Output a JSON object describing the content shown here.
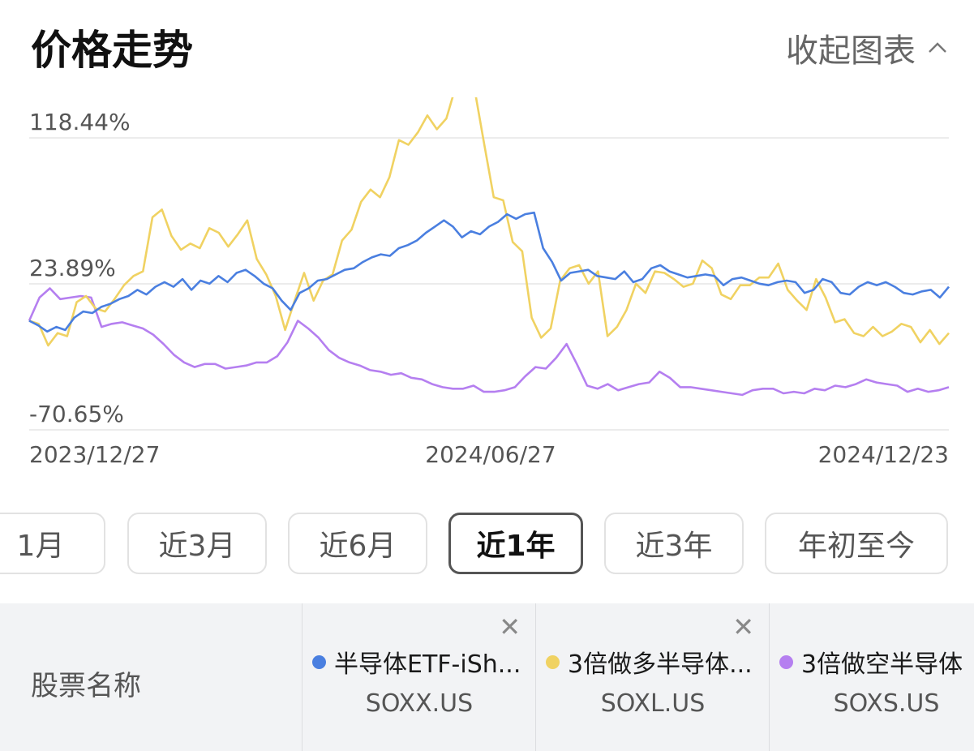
{
  "header": {
    "title": "价格走势",
    "collapse_label": "收起图表"
  },
  "chart_data": {
    "type": "line",
    "y_tick_labels": [
      "118.44%",
      "23.89%",
      "-70.65%"
    ],
    "ylim": [
      -70.65,
      118.44
    ],
    "x_tick_labels": [
      "2023/12/27",
      "2024/06/27",
      "2024/12/23"
    ],
    "colors": {
      "soxx": "#4a7fe0",
      "soxl": "#f0d262",
      "soxs": "#b57ff0"
    },
    "series": [
      {
        "id": "soxx",
        "values": [
          0,
          -3,
          -7,
          -4,
          -6,
          2,
          6,
          5,
          9,
          11,
          14,
          16,
          20,
          17,
          22,
          25,
          22,
          27,
          20,
          26,
          24,
          29,
          25,
          31,
          33,
          29,
          24,
          21,
          13,
          7,
          18,
          21,
          26,
          27,
          30,
          33,
          34,
          38,
          41,
          43,
          42,
          47,
          49,
          52,
          57,
          61,
          65,
          61,
          54,
          58,
          56,
          61,
          64,
          69,
          66,
          69,
          70,
          47,
          38,
          26,
          31,
          32,
          33,
          29,
          28,
          27,
          32,
          25,
          27,
          34,
          36,
          32,
          30,
          28,
          29,
          30,
          29,
          23,
          27,
          28,
          26,
          24,
          23,
          25,
          26,
          25,
          18,
          20,
          27,
          25,
          18,
          17,
          22,
          25,
          23,
          25,
          22,
          18,
          17,
          19,
          20,
          15,
          22
        ]
      },
      {
        "id": "soxl",
        "values": [
          0,
          -2,
          -16,
          -8,
          -10,
          12,
          16,
          8,
          6,
          14,
          23,
          29,
          32,
          67,
          72,
          55,
          46,
          50,
          47,
          60,
          57,
          48,
          56,
          65,
          40,
          30,
          16,
          -6,
          13,
          31,
          13,
          26,
          30,
          52,
          59,
          77,
          85,
          80,
          93,
          117,
          114,
          122,
          133,
          124,
          131,
          152,
          152,
          149,
          114,
          80,
          78,
          51,
          45,
          2,
          -11,
          -5,
          26,
          34,
          36,
          24,
          32,
          -10,
          -4,
          7,
          24,
          18,
          32,
          31,
          27,
          22,
          24,
          39,
          34,
          17,
          14,
          23,
          23,
          28,
          28,
          37,
          20,
          13,
          7,
          27,
          15,
          -1,
          1,
          -8,
          -10,
          -4,
          -10,
          -7,
          -2,
          -4,
          -14,
          -6,
          -15,
          -8
        ]
      },
      {
        "id": "soxs",
        "values": [
          0,
          15,
          21,
          14,
          15,
          16,
          15,
          -4,
          -2,
          -1,
          -3,
          -5,
          -9,
          -15,
          -22,
          -27,
          -30,
          -28,
          -28,
          -31,
          -30,
          -29,
          -27,
          -27,
          -23,
          -14,
          0,
          -5,
          -11,
          -19,
          -24,
          -27,
          -29,
          -32,
          -33,
          -35,
          -34,
          -37,
          -38,
          -41,
          -43,
          -44,
          -44,
          -42,
          -46,
          -46,
          -45,
          -43,
          -36,
          -30,
          -31,
          -24,
          -15,
          -28,
          -42,
          -44,
          -41,
          -45,
          -43,
          -41,
          -40,
          -33,
          -37,
          -43,
          -43,
          -44,
          -45,
          -46,
          -47,
          -48,
          -45,
          -44,
          -44,
          -47,
          -46,
          -47,
          -44,
          -45,
          -42,
          -43,
          -41,
          -38,
          -40,
          -41,
          -42,
          -46,
          -44,
          -46,
          -45,
          -43
        ]
      }
    ]
  },
  "ranges": {
    "items": [
      "1月",
      "近3月",
      "近6月",
      "近1年",
      "近3年",
      "年初至今"
    ],
    "active": "近1年"
  },
  "compare": {
    "label": "股票名称",
    "stocks": [
      {
        "name": "半导体ETF-iSh...",
        "code": "SOXX.US",
        "color": "#4a7fe0"
      },
      {
        "name": "3倍做多半导体...",
        "code": "SOXL.US",
        "color": "#f0d262"
      },
      {
        "name": "3倍做空半导体",
        "code": "SOXS.US",
        "color": "#b57ff0"
      }
    ]
  }
}
